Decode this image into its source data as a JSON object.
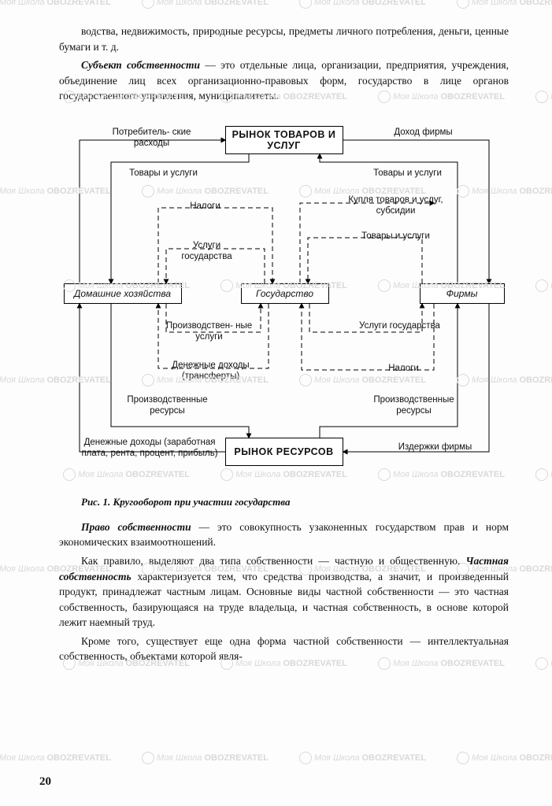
{
  "text": {
    "p1": "водства, недвижимость, природные ресурсы, предметы личного потребления, деньги, ценные бумаги и т. д.",
    "p2a": "Субъект собственности",
    "p2b": " — это отдельные лица, организации, предприятия, учреждения, объединение лиц всех организационно-правовых форм, государство в лице органов государственного управления, муниципалитеты.",
    "caption": "Рис. 1. Кругооборот при участии государства",
    "p3a": "Право собственности",
    "p3b": " — это совокупность узаконенных государством прав и норм экономических взаимоотношений.",
    "p4a": "Как правило, выделяют два типа собственности — частную и общественную. ",
    "p4b": "Частная собственность",
    "p4c": " характеризуется тем, что средства производства, а значит, и произведенный продукт, принадлежат частным лицам. Основные виды частной собственности — это частная собственность, базирующаяся на труде владельца, и частная собственность, в основе которой лежит наемный труд.",
    "p5": "Кроме того, существует еще одна форма частной собственности — интеллектуальная собственность, объектами которой явля-",
    "pagenum": "20"
  },
  "diagram": {
    "title_top": "РЫНОК ТОВАРОВ И УСЛУГ",
    "title_bottom": "РЫНОК РЕСУРСОВ",
    "node_left": "Домашние хозяйства",
    "node_mid": "Государство",
    "node_right": "Фирмы",
    "lbl_consumer_exp": "Потребитель-\nские расходы",
    "lbl_firm_income": "Доход фирмы",
    "lbl_goods_l": "Товары и услуги",
    "lbl_goods_r": "Товары и услуги",
    "lbl_taxes_l": "Налоги",
    "lbl_taxes_r": "Налоги",
    "lbl_gov_services_l": "Услуги государства",
    "lbl_gov_services_r": "Услуги государства",
    "lbl_buy_goods": "Купля товаров и услуг, субсидии",
    "lbl_goods_r2": "Товары и услуги",
    "lbl_prod_services": "Производствен-\nные услуги",
    "lbl_transfers": "Денежные доходы (трансферты)",
    "lbl_prod_res_l": "Производственные ресурсы",
    "lbl_prod_res_r": "Производственные ресурсы",
    "lbl_money_income": "Денежные доходы (заработная плата, рента, процент, прибыль)",
    "lbl_firm_costs": "Издержки фирмы"
  },
  "style": {
    "box_border_color": "#000000",
    "dashed_color": "#444444",
    "dash": "6 4",
    "bg": "#fdfdfd",
    "watermark_color": "#d9d9d9",
    "watermark_text1": "Моя Школа",
    "watermark_text2": "OBOZREVATEL"
  }
}
